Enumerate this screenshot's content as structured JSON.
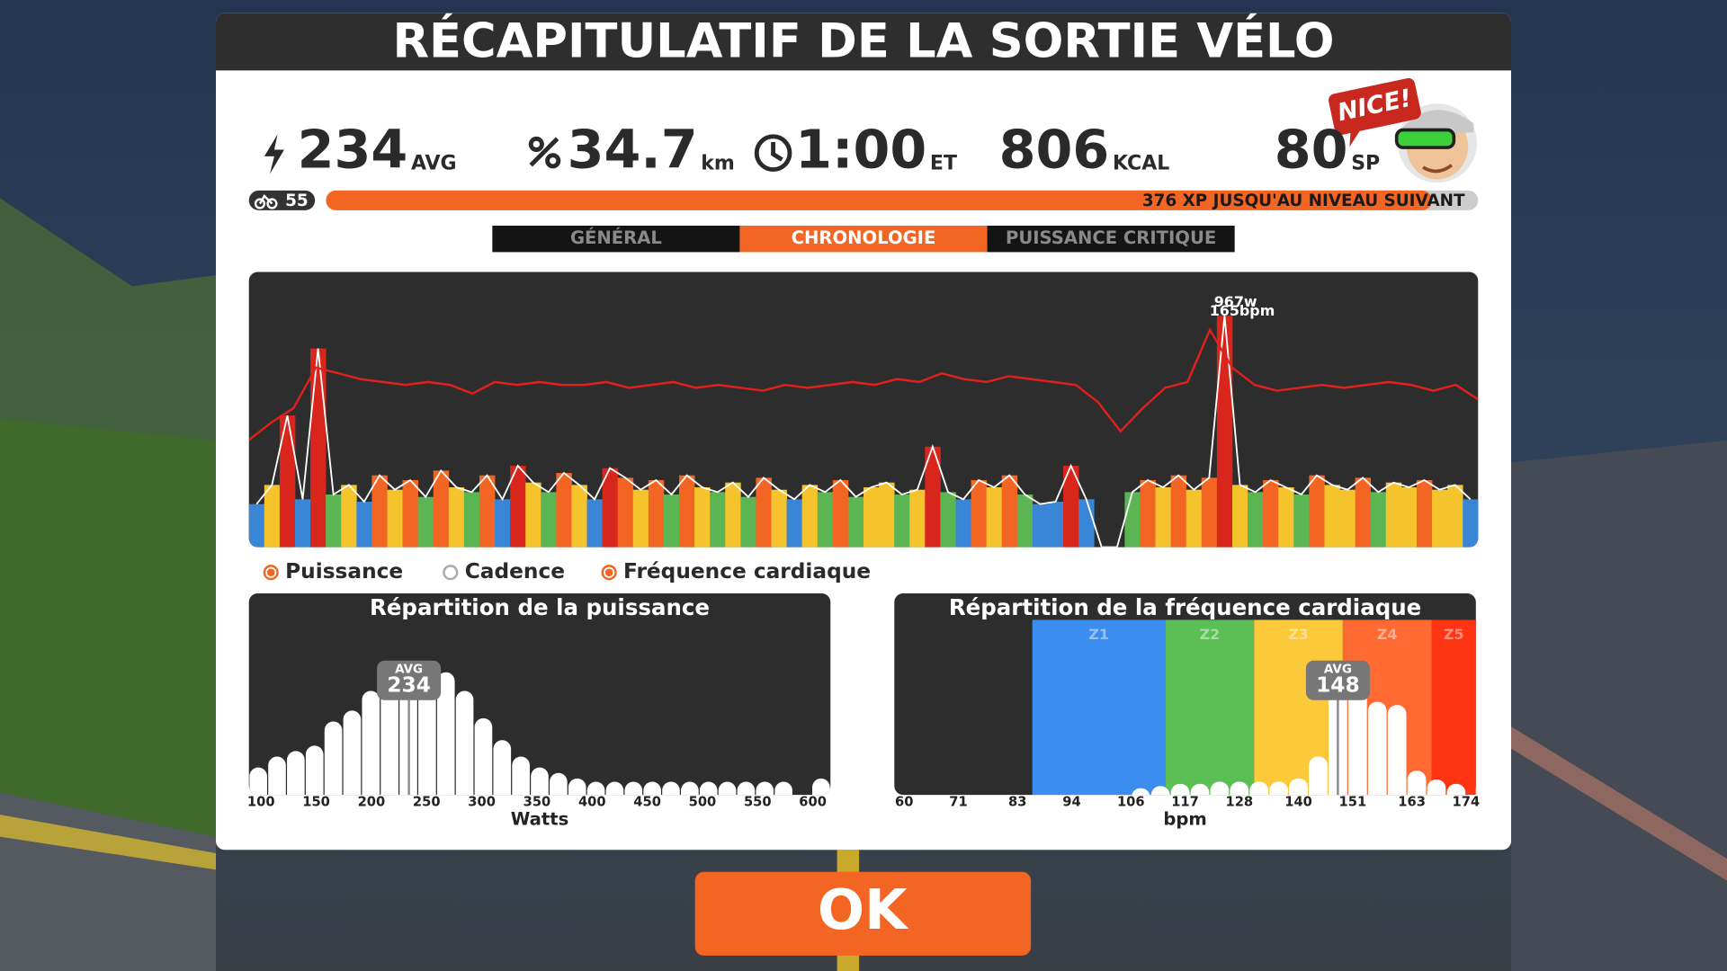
{
  "header": {
    "title": "RÉCAPITULATIF DE LA SORTIE VÉLO"
  },
  "stats": [
    {
      "value": "234",
      "unit": "AVG"
    },
    {
      "value": "34.7",
      "unit": "km"
    },
    {
      "value": "1:00",
      "unit": "ET"
    },
    {
      "value": "806",
      "unit": "KCAL"
    },
    {
      "value": "80",
      "unit": "SP"
    }
  ],
  "badge": "NICE!",
  "level": "55",
  "xp": {
    "text": "376 XP JUSQU'AU NIVEAU SUIVANT",
    "progress": 96
  },
  "tabs": [
    {
      "label": "GÉNÉRAL",
      "active": false
    },
    {
      "label": "CHRONOLOGIE",
      "active": true
    },
    {
      "label": "PUISSANCE CRITIQUE",
      "active": false
    }
  ],
  "timeline": {
    "peak_labels": [
      "967w",
      "165bpm"
    ],
    "power_ylim": [
      0,
      1150
    ],
    "hr_ylim": [
      90,
      185
    ],
    "hr_color": "#e0201b",
    "power_zones": [
      {
        "max": 150,
        "color": "#7f7f7f"
      },
      {
        "max": 205,
        "color": "#3a86d6"
      },
      {
        "max": 240,
        "color": "#5ab552"
      },
      {
        "max": 280,
        "color": "#f5c32c"
      },
      {
        "max": 330,
        "color": "#f26522"
      },
      {
        "color": "#d9261c"
      }
    ],
    "power": [
      180,
      260,
      550,
      200,
      830,
      220,
      260,
      190,
      300,
      240,
      280,
      210,
      320,
      250,
      230,
      300,
      200,
      340,
      270,
      230,
      310,
      260,
      200,
      330,
      290,
      240,
      280,
      220,
      300,
      250,
      230,
      270,
      210,
      290,
      240,
      200,
      260,
      230,
      280,
      210,
      250,
      270,
      220,
      240,
      420,
      230,
      200,
      280,
      250,
      300,
      220,
      180,
      190,
      340,
      200,
      0,
      0,
      230,
      280,
      250,
      300,
      240,
      290,
      967,
      260,
      230,
      280,
      250,
      220,
      300,
      260,
      240,
      290,
      230,
      270,
      250,
      280,
      240,
      260,
      200
    ],
    "heart_rate": [
      127,
      133,
      138,
      152,
      150,
      148,
      147,
      146,
      147,
      146,
      143,
      147,
      146,
      147,
      146,
      146,
      147,
      145,
      146,
      147,
      145,
      146,
      145,
      144,
      146,
      145,
      146,
      147,
      146,
      148,
      147,
      150,
      148,
      147,
      149,
      148,
      147,
      146,
      140,
      130,
      138,
      145,
      147,
      165,
      152,
      146,
      144,
      145,
      146,
      145,
      146,
      147,
      146,
      144,
      146,
      141
    ]
  },
  "legend": [
    {
      "label": "Puissance",
      "checked": true
    },
    {
      "label": "Cadence",
      "checked": false
    },
    {
      "label": "Fréquence cardiaque",
      "checked": true
    }
  ],
  "power_distribution": {
    "title": "Répartition de la puissance",
    "xlabel": "Watts",
    "xlim": [
      89,
      616
    ],
    "ylim": [
      0,
      160
    ],
    "xticks": [
      100,
      150,
      200,
      250,
      300,
      350,
      400,
      450,
      500,
      550,
      600
    ],
    "avg_label": "AVG",
    "avg": 234,
    "bins": [
      89,
      106,
      123,
      140,
      157,
      174,
      191,
      208,
      225,
      242,
      259,
      276,
      293,
      310,
      327,
      344,
      361,
      378,
      395,
      412,
      429,
      446,
      463,
      480,
      497,
      514,
      531,
      548,
      565,
      582,
      599,
      616
    ],
    "values": [
      25,
      35,
      40,
      45,
      67,
      77,
      95,
      105,
      112,
      115,
      112,
      95,
      70,
      50,
      35,
      25,
      20,
      15,
      12,
      12,
      12,
      12,
      12,
      12,
      12,
      12,
      12,
      12,
      12,
      0,
      15
    ]
  },
  "hr_distribution": {
    "title": "Répartition de la fréquence cardiaque",
    "xlabel": "bpm",
    "xlim": [
      58,
      176
    ],
    "ylim": [
      0,
      160
    ],
    "xticks": [
      60,
      71,
      83,
      94,
      106,
      117,
      128,
      140,
      151,
      163,
      174
    ],
    "avg_label": "AVG",
    "avg": 148,
    "zones": [
      {
        "name": "Z1",
        "from": 86,
        "to": 113,
        "color": "#3b8ef0"
      },
      {
        "name": "Z2",
        "from": 113,
        "to": 131,
        "color": "#5cbf55"
      },
      {
        "name": "Z3",
        "from": 131,
        "to": 149,
        "color": "#fcc93a"
      },
      {
        "name": "Z4",
        "from": 149,
        "to": 167,
        "color": "#ff6a33"
      },
      {
        "name": "Z5",
        "from": 167,
        "to": 176,
        "color": "#ff3413"
      }
    ],
    "bins": [
      106,
      110,
      114,
      118,
      122,
      126,
      130,
      134,
      138,
      142,
      146,
      150,
      154,
      158,
      162,
      166,
      170,
      174
    ],
    "values": [
      6,
      8,
      10,
      10,
      12,
      12,
      12,
      12,
      15,
      35,
      100,
      105,
      85,
      82,
      22,
      14,
      10
    ]
  },
  "ok": "OK"
}
